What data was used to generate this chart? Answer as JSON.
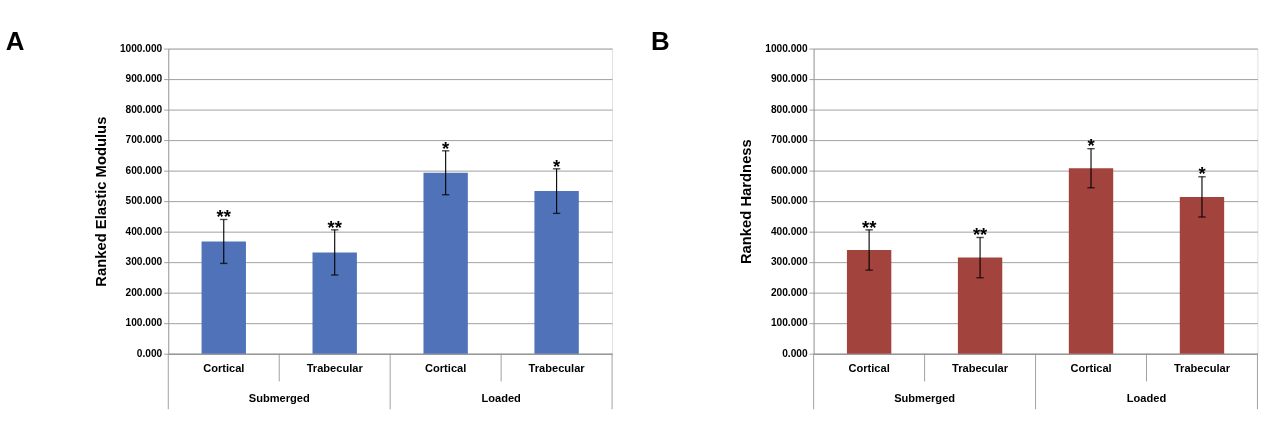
{
  "chart_data": [
    {
      "type": "bar",
      "title": "A",
      "ylabel": "Ranked Elastic Modulus",
      "categories": [
        "Cortical",
        "Trabecular",
        "Cortical",
        "Trabecular"
      ],
      "series": [
        {
          "color": "#4f72b8",
          "values": [
            368,
            332,
            593,
            533
          ],
          "errors": [
            72,
            74,
            72,
            73
          ]
        }
      ],
      "ylim": [
        0,
        1000
      ],
      "yticks": [
        {
          "value": 0,
          "label": "0.000"
        },
        {
          "value": 100,
          "label": "100.000"
        },
        {
          "value": 200,
          "label": "200.000"
        },
        {
          "value": 300,
          "label": "300.000"
        },
        {
          "value": 400,
          "label": "400.000"
        },
        {
          "value": 500,
          "label": "500.000"
        },
        {
          "value": 600,
          "label": "600.000"
        },
        {
          "value": 700,
          "label": "700.000"
        },
        {
          "value": 800,
          "label": "800.000"
        },
        {
          "value": 900,
          "label": "900.000"
        },
        {
          "value": 1000,
          "label": "1000.000"
        }
      ],
      "grid": "y",
      "annotations": [
        "Submerged",
        "Loaded",
        "**",
        "**",
        "*",
        "*"
      ]
    },
    {
      "type": "bar",
      "title": "B",
      "ylabel": "Ranked Hardness",
      "categories": [
        "Cortical",
        "Trabecular",
        "Cortical",
        "Trabecular"
      ],
      "series": [
        {
          "color": "#a3433d",
          "values": [
            340,
            315,
            608,
            514
          ],
          "errors": [
            66,
            66,
            64,
            66
          ]
        }
      ],
      "ylim": [
        0,
        1000
      ],
      "yticks": [
        {
          "value": 0,
          "label": "0.000"
        },
        {
          "value": 100,
          "label": "100.000"
        },
        {
          "value": 200,
          "label": "200.000"
        },
        {
          "value": 300,
          "label": "300.000"
        },
        {
          "value": 400,
          "label": "400.000"
        },
        {
          "value": 500,
          "label": "500.000"
        },
        {
          "value": 600,
          "label": "600.000"
        },
        {
          "value": 700,
          "label": "700.000"
        },
        {
          "value": 800,
          "label": "800.000"
        },
        {
          "value": 900,
          "label": "900.000"
        },
        {
          "value": 1000,
          "label": "1000.000"
        }
      ],
      "grid": "y",
      "annotations": [
        "Submerged",
        "Loaded",
        "**",
        "**",
        "*",
        "*"
      ]
    }
  ]
}
